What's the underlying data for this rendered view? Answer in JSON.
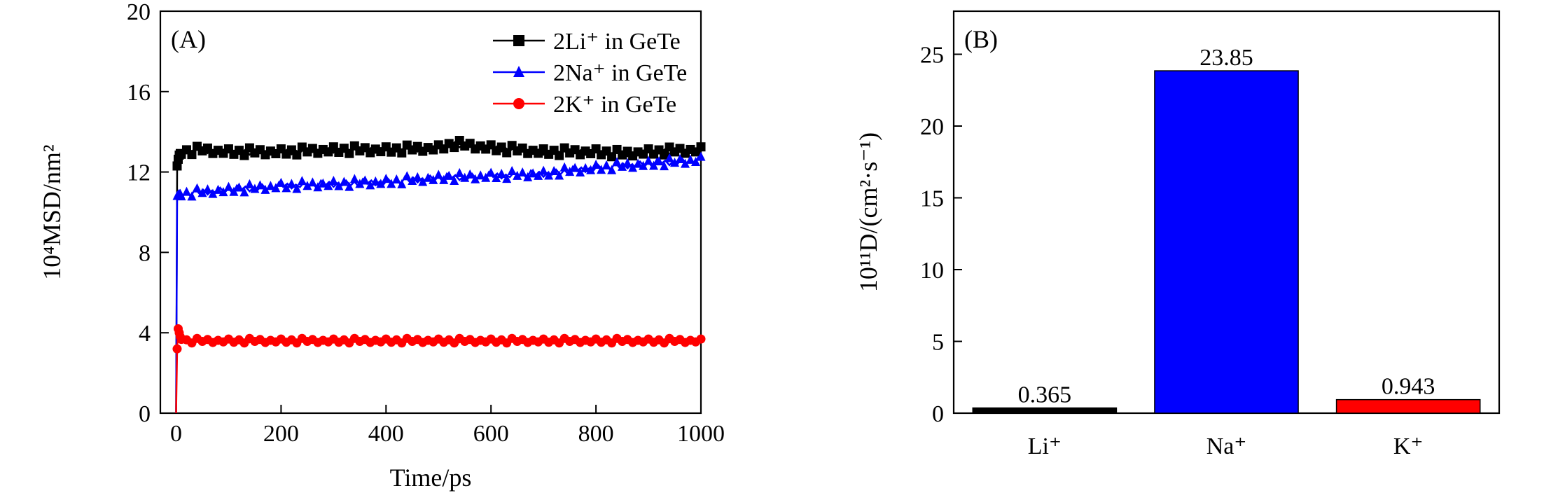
{
  "chart_data": [
    {
      "type": "line",
      "panel_label": "(A)",
      "xlabel": "Time/ps",
      "ylabel": "10⁴MSD/nm²",
      "xlim": [
        -30,
        1000
      ],
      "ylim": [
        0,
        20
      ],
      "xticks": [
        0,
        200,
        400,
        600,
        800,
        1000
      ],
      "yticks": [
        0,
        4,
        8,
        12,
        16,
        20
      ],
      "legend_position": "top-right",
      "series": [
        {
          "name": "2Li⁺ in GeTe",
          "color": "#000000",
          "marker": "square",
          "x": [
            0,
            2,
            5,
            10,
            50,
            100,
            200,
            300,
            400,
            500,
            530,
            600,
            700,
            800,
            850,
            900,
            1000
          ],
          "values": [
            0,
            12.3,
            12.8,
            13.0,
            13.1,
            13.0,
            13.0,
            13.1,
            13.1,
            13.2,
            13.4,
            13.2,
            13.0,
            13.0,
            12.9,
            13.0,
            13.1
          ]
        },
        {
          "name": "2Na⁺ in GeTe",
          "color": "#0000ff",
          "marker": "triangle",
          "x": [
            0,
            2,
            5,
            10,
            50,
            100,
            200,
            300,
            400,
            500,
            600,
            700,
            800,
            900,
            1000
          ],
          "values": [
            0,
            10.8,
            10.9,
            10.9,
            11.0,
            11.1,
            11.3,
            11.4,
            11.5,
            11.7,
            11.8,
            11.9,
            12.2,
            12.4,
            12.6
          ]
        },
        {
          "name": "2K⁺ in GeTe",
          "color": "#ff0000",
          "marker": "circle",
          "x": [
            0,
            2,
            4,
            8,
            15,
            50,
            100,
            200,
            300,
            400,
            500,
            600,
            700,
            800,
            900,
            1000
          ],
          "values": [
            0,
            3.2,
            4.2,
            3.8,
            3.6,
            3.6,
            3.6,
            3.6,
            3.6,
            3.6,
            3.6,
            3.6,
            3.6,
            3.6,
            3.6,
            3.6
          ]
        }
      ]
    },
    {
      "type": "bar",
      "panel_label": "(B)",
      "xlabel": "",
      "ylabel": "10¹¹D/(cm²·s⁻¹)",
      "ylim": [
        0,
        28
      ],
      "yticks": [
        0,
        5,
        10,
        15,
        20,
        25
      ],
      "categories": [
        "Li⁺",
        "Na⁺",
        "K⁺"
      ],
      "values": [
        0.365,
        23.85,
        0.943
      ],
      "value_labels": [
        "0.365",
        "23.85",
        "0.943"
      ],
      "colors": [
        "#000000",
        "#0000ff",
        "#ff0000"
      ]
    }
  ]
}
